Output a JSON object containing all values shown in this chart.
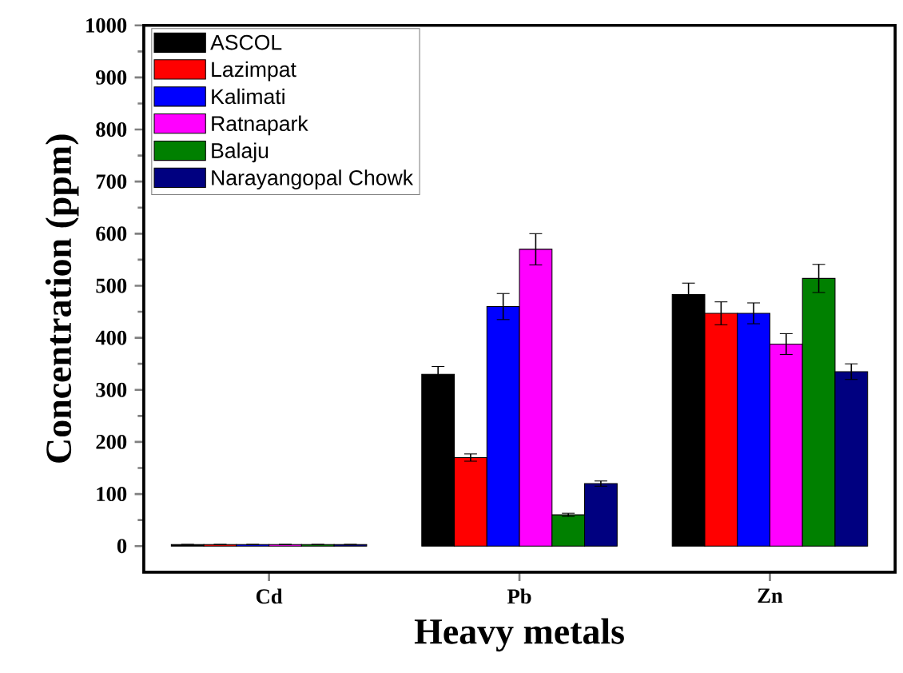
{
  "chart_data": {
    "type": "bar",
    "xlabel": "Heavy metals",
    "ylabel": "Concentration (ppm)",
    "categories": [
      "Cd",
      "Pb",
      "Zn"
    ],
    "series": [
      {
        "name": "ASCOL",
        "color": "#000000",
        "values": [
          3,
          330,
          483
        ],
        "errors": [
          null,
          15,
          22
        ]
      },
      {
        "name": "Lazimpat",
        "color": "#ff0000",
        "values": [
          3,
          170,
          447
        ],
        "errors": [
          null,
          7,
          22
        ]
      },
      {
        "name": "Kalimati",
        "color": "#0000ff",
        "values": [
          3,
          460,
          447
        ],
        "errors": [
          null,
          25,
          20
        ]
      },
      {
        "name": "Ratnapark",
        "color": "#ff00ff",
        "values": [
          3,
          570,
          388
        ],
        "errors": [
          null,
          30,
          20
        ]
      },
      {
        "name": "Balaju",
        "color": "#008000",
        "values": [
          3,
          60,
          514
        ],
        "errors": [
          null,
          3,
          27
        ]
      },
      {
        "name": "Narayangopal Chowk",
        "color": "#000080",
        "values": [
          3,
          120,
          335
        ],
        "errors": [
          null,
          5,
          15
        ]
      }
    ],
    "ylim": [
      -50,
      1000
    ],
    "yticks": [
      0,
      100,
      200,
      300,
      400,
      500,
      600,
      700,
      800,
      900,
      1000
    ],
    "legend": "top left",
    "grid": false
  }
}
